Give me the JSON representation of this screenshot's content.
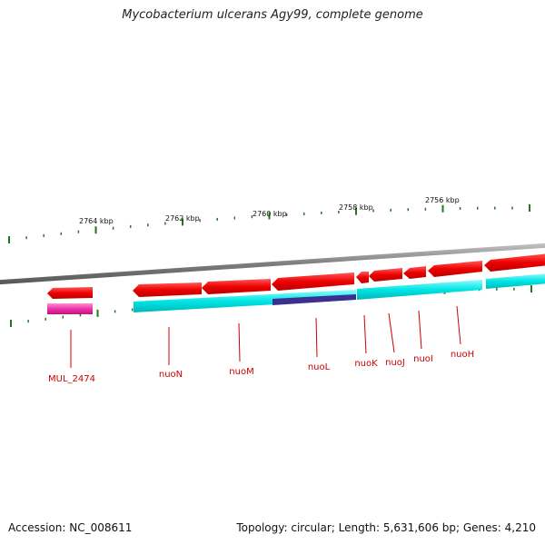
{
  "title": "Mycobacterium ulcerans Agy99, complete genome",
  "footer": {
    "accession": "Accession: NC_008611",
    "summary": "Topology: circular; Length: 5,631,606 bp; Genes: 4,210"
  },
  "colors": {
    "backbone": "#8a8a8a",
    "forward_gene": "#ee0000",
    "cds": "#00e5e5",
    "pseudo": "#ee33aa",
    "overlap": "#3b2f8f",
    "tick": "#1e7a1e",
    "label": "#cc0000"
  },
  "scale_labels": [
    "2764 kbp",
    "2762 kbp",
    "2760 kbp",
    "2758 kbp",
    "2756 kbp"
  ],
  "genes": [
    {
      "name": "MUL_2474"
    },
    {
      "name": "nuoN"
    },
    {
      "name": "nuoM"
    },
    {
      "name": "nuoL"
    },
    {
      "name": "nuoK"
    },
    {
      "name": "nuoJ"
    },
    {
      "name": "nuoI"
    },
    {
      "name": "nuoH"
    }
  ]
}
